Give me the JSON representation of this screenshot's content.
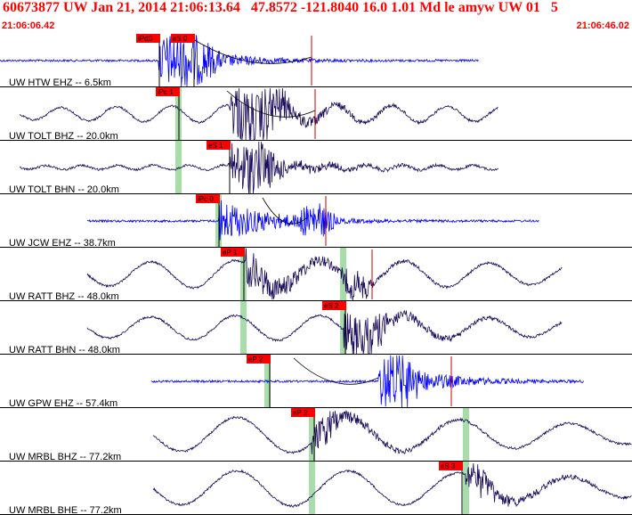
{
  "header": {
    "title": "60673877 UW Jan 21, 2014 21:06:13.64   47.8572 -121.8040 16.0 1.01 Md le amyw UW 01   5",
    "start_time": "21:06:06.42",
    "end_time": "21:06:46.02"
  },
  "colors": {
    "title": "#ff0000",
    "short_period": "#0000ff",
    "broadband": "#1a0a5a",
    "pick_box": "#ff0000",
    "pick_window": "#a8dca8",
    "separator": "#000000",
    "amp_line": "#cc0000"
  },
  "tick_labels": [
    "21:06:06.42",
    "21:06:46.02"
  ],
  "traces": [
    {
      "label": "UW HTW EHZ -- 6.5km",
      "color_key": "short_period",
      "picks": [
        {
          "text": "iPd0"
        },
        {
          "text": "eS 0"
        }
      ]
    },
    {
      "label": "UW TOLT BHZ -- 20.0km",
      "color_key": "broadband",
      "picks": [
        {
          "text": "iPc 1"
        }
      ]
    },
    {
      "label": "UW TOLT BHN -- 20.0km",
      "color_key": "broadband",
      "picks": [
        {
          "text": "eS 1"
        }
      ]
    },
    {
      "label": "UW JCW EHZ -- 38.7km",
      "color_key": "short_period",
      "picks": [
        {
          "text": "iPc 0"
        }
      ]
    },
    {
      "label": "UW RATT BHZ -- 48.0km",
      "color_key": "broadband",
      "picks": [
        {
          "text": "eP 1"
        }
      ]
    },
    {
      "label": "UW RATT BHN -- 48.0km",
      "color_key": "broadband",
      "picks": [
        {
          "text": "eS 2"
        }
      ]
    },
    {
      "label": "UW GPW EHZ -- 57.4km",
      "color_key": "short_period",
      "picks": [
        {
          "text": "eP 2"
        }
      ]
    },
    {
      "label": "UW MRBL BHZ -- 77.2km",
      "color_key": "broadband",
      "picks": [
        {
          "text": "eP 2"
        }
      ]
    },
    {
      "label": "UW MRBL BHE -- 77.2km",
      "color_key": "broadband",
      "picks": [
        {
          "text": "eS 3"
        }
      ]
    }
  ]
}
